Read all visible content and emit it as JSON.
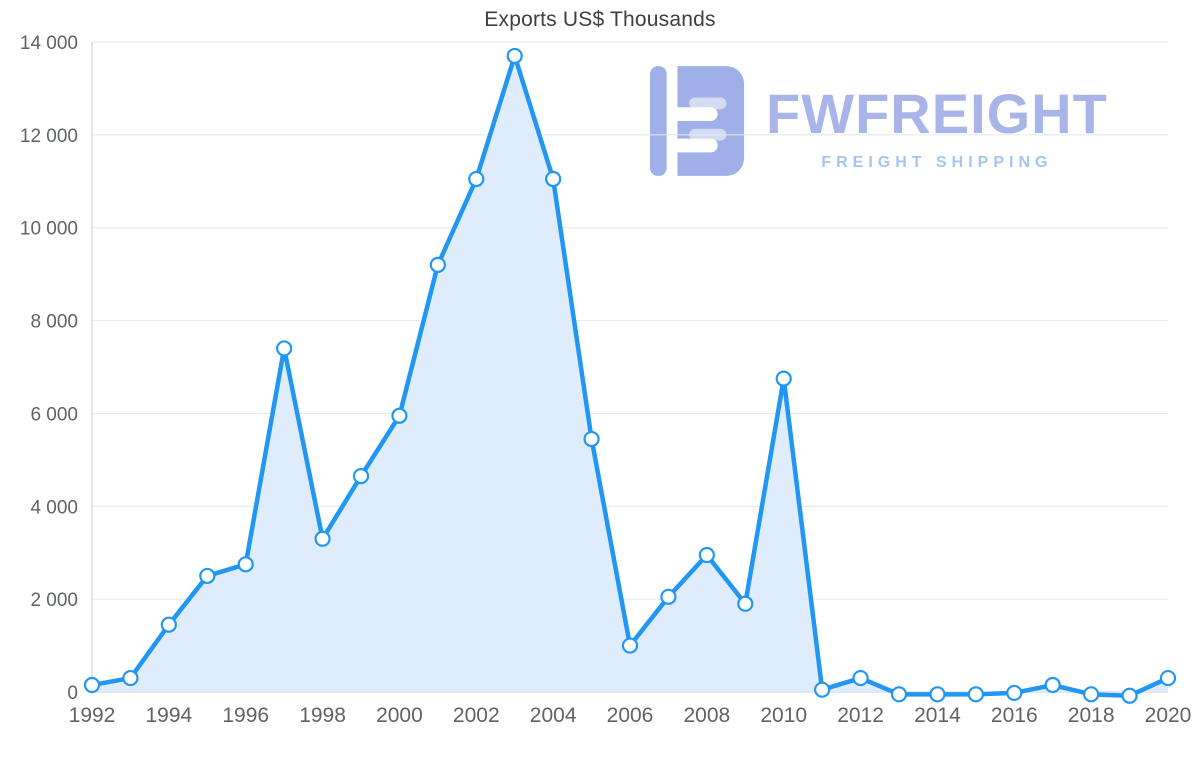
{
  "watermark": {
    "brand": "FWFREIGHT",
    "tagline": "FREIGHT SHIPPING",
    "brand_color": "#a9b4e8",
    "tagline_color": "#a5c5ee"
  },
  "chart_data": {
    "type": "area",
    "title": "Exports US$ Thousands",
    "x": [
      1992,
      1993,
      1994,
      1995,
      1996,
      1997,
      1998,
      1999,
      2000,
      2001,
      2002,
      2003,
      2004,
      2005,
      2006,
      2007,
      2008,
      2009,
      2010,
      2011,
      2012,
      2013,
      2014,
      2015,
      2016,
      2017,
      2018,
      2019,
      2020
    ],
    "values": [
      150,
      300,
      1450,
      2500,
      2750,
      7400,
      3300,
      4650,
      5950,
      9200,
      11050,
      13700,
      11050,
      5450,
      1000,
      2050,
      2950,
      1900,
      6750,
      50,
      300,
      -50,
      -50,
      -50,
      -20,
      150,
      -50,
      -80,
      300
    ],
    "xlabel": "",
    "ylabel": "",
    "ylim": [
      0,
      14000
    ],
    "y_ticks": [
      0,
      2000,
      4000,
      6000,
      8000,
      10000,
      12000,
      14000
    ],
    "y_tick_labels": [
      "0",
      "2 000",
      "4 000",
      "6 000",
      "8 000",
      "10 000",
      "12 000",
      "14 000"
    ],
    "x_tick_labels": [
      "1992",
      "1994",
      "1996",
      "1998",
      "2000",
      "2002",
      "2004",
      "2006",
      "2008",
      "2010",
      "2012",
      "2014",
      "2016",
      "2018",
      "2020"
    ],
    "grid": "horizontal",
    "legend": "none",
    "line_color": "#2196f3",
    "fill_color": "#daeafb",
    "marker_fill": "#ffffff",
    "grid_color": "#e4e7ea",
    "axis_color": "#c9cdd2",
    "tick_label_color": "#5f6368"
  }
}
